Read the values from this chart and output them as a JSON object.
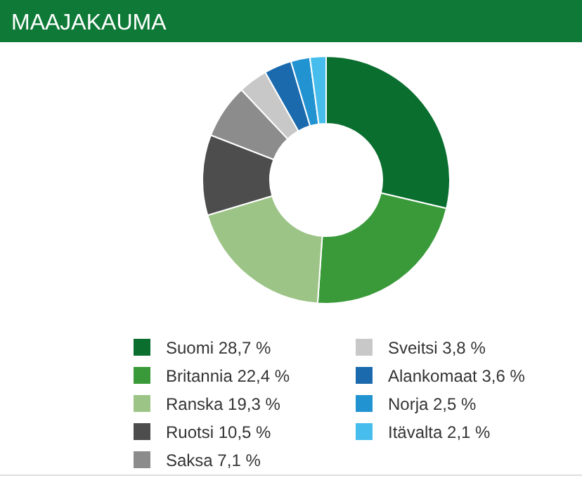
{
  "chart_data": {
    "type": "donut",
    "title": "MAAJAKAUMA",
    "categories": [
      "Suomi",
      "Britannia",
      "Ranska",
      "Ruotsi",
      "Saksa",
      "Sveitsi",
      "Alankomaat",
      "Norja",
      "Itävalta"
    ],
    "values": [
      28.7,
      22.4,
      19.3,
      10.5,
      7.1,
      3.8,
      3.6,
      2.5,
      2.1
    ],
    "value_labels": [
      "28,7 %",
      "22,4 %",
      "19,3 %",
      "10,5 %",
      "7,1 %",
      "3,8 %",
      "3,6 %",
      "2,5 %",
      "2,1 %"
    ],
    "colors": [
      "#0a6e2f",
      "#3a9a3a",
      "#9dc487",
      "#4d4d4d",
      "#8c8c8c",
      "#c8c8c8",
      "#1a6aad",
      "#2293d1",
      "#47bdee"
    ],
    "legend": "bottom"
  }
}
